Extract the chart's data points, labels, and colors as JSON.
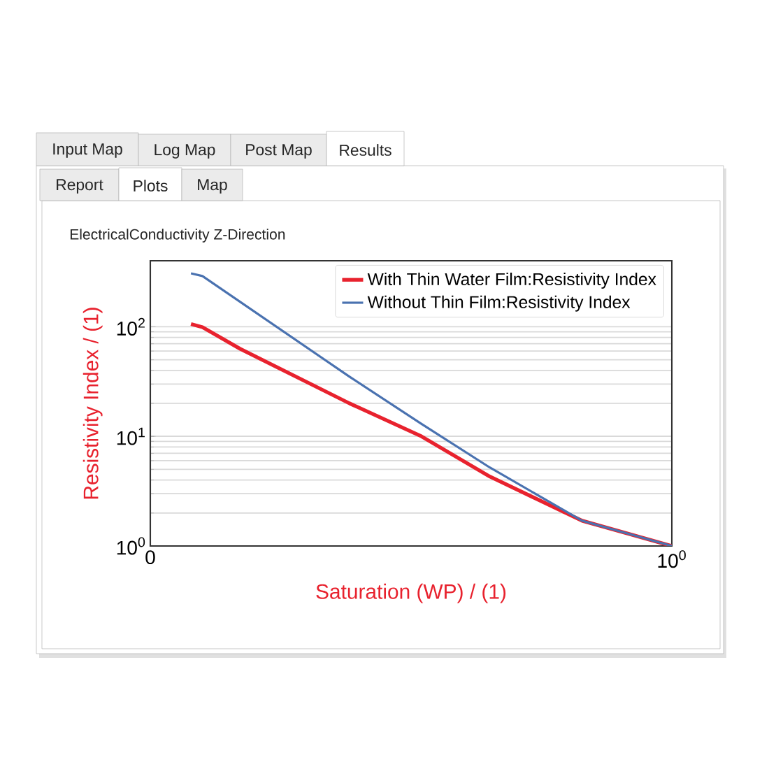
{
  "chart_data": {
    "type": "line",
    "title": "ElectricalConductivity Z-Direction",
    "xlabel": "Saturation (WP) / (1)",
    "ylabel": "Resistivity Index / (1)",
    "annotations": [
      "Input Map",
      "Log Map",
      "Post Map",
      "Results",
      "Report",
      "Plots",
      "Map"
    ],
    "xlim": [
      0,
      1
    ],
    "xticks": [
      0,
      {
        "value": 1,
        "label": "10$^{0}$"
      }
    ],
    "ylim": [
      1,
      400
    ],
    "yticks": [
      {
        "value": 1,
        "label": "10$^{0}$"
      },
      {
        "value": 10,
        "label": "10$^{1}$"
      },
      {
        "value": 100,
        "label": "10$^{2}$"
      }
    ],
    "log": "y",
    "grid": "y",
    "legend": "top right",
    "series": [
      {
        "name": "With Thin Water Film:Resistivity Index",
        "color": "#e8222e",
        "x": [
          0.078,
          0.1,
          0.172,
          0.382,
          0.52,
          0.651,
          0.828,
          1
        ],
        "values": [
          106,
          99,
          63,
          20,
          10,
          4.3,
          1.7,
          1
        ]
      },
      {
        "name": "Without Thin Film:Resistivity Index",
        "color": "#4a72b0",
        "x": [
          0.078,
          0.1,
          0.382,
          0.52,
          0.651,
          0.828,
          1
        ],
        "values": [
          307,
          290,
          35,
          13,
          5.2,
          1.7,
          1
        ]
      }
    ]
  }
}
